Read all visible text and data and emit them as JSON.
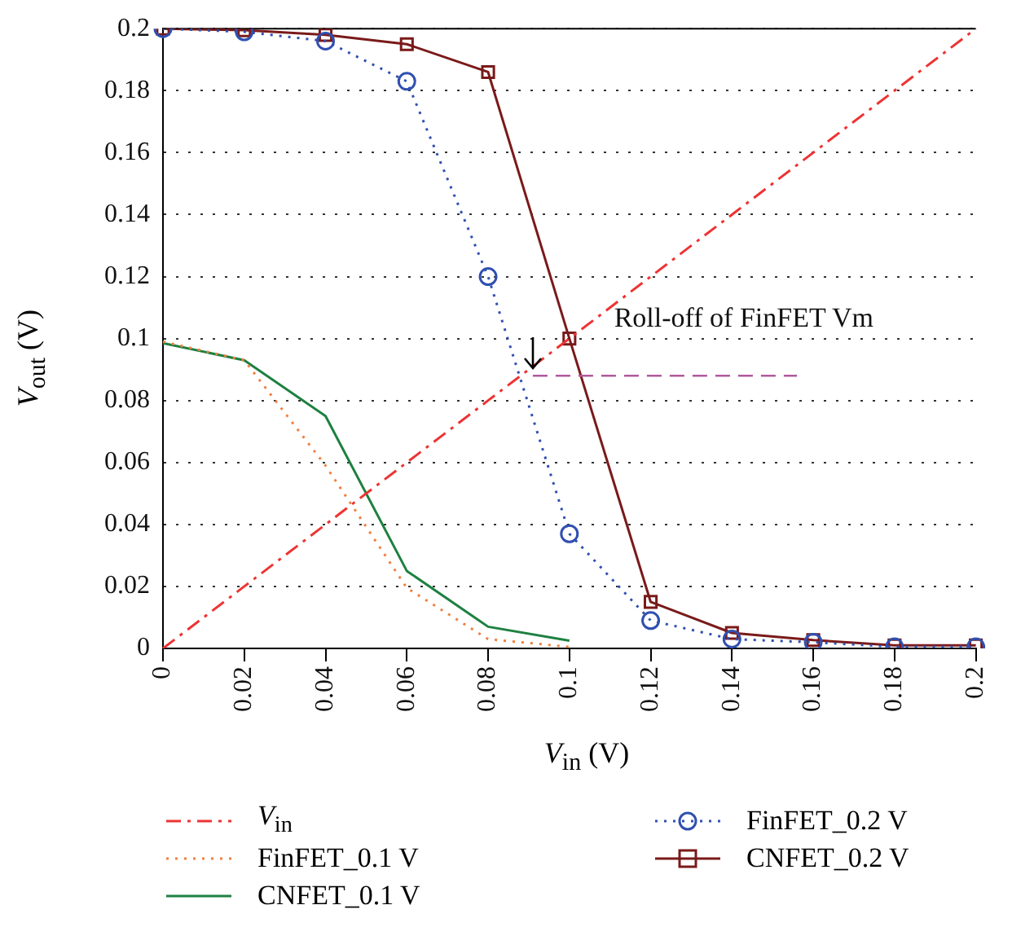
{
  "chart_data": {
    "type": "line",
    "xlabel": "V$_{in}$ (V)",
    "ylabel": "V$_{out}$ (V)",
    "categories": [
      "0",
      "0.02",
      "0.04",
      "0.06",
      "0.08",
      "0.1",
      "0.12",
      "0.14",
      "0.16",
      "0.18",
      "0.2"
    ],
    "series": [
      {
        "name": "V$_{in}$",
        "color": "#ee3333",
        "line_style": "dashed",
        "marker": "none",
        "values": [
          0,
          0.02,
          0.04,
          0.06,
          0.08,
          0.1,
          0.12,
          0.14,
          0.16,
          0.18,
          0.2
        ]
      },
      {
        "name": "FinFET_0.1 V",
        "color": "#f08040",
        "line_style": "dotted",
        "marker": "none",
        "values": [
          0.099,
          0.093,
          0.059,
          0.0195,
          0.003,
          0.0005,
          null,
          null,
          null,
          null,
          null
        ]
      },
      {
        "name": "CNFET_0.1 V",
        "color": "#1e8040",
        "line_style": "solid",
        "marker": "none",
        "values": [
          0.0985,
          0.093,
          0.075,
          0.025,
          0.007,
          0.0025,
          null,
          null,
          null,
          null,
          null
        ]
      },
      {
        "name": "FinFET_0.2 V",
        "color": "#3050b0",
        "line_style": "dotted",
        "marker": "circle",
        "values": [
          0.2,
          0.199,
          0.196,
          0.183,
          0.12,
          0.037,
          0.009,
          0.003,
          0.002,
          0.0005,
          0.0005
        ]
      },
      {
        "name": "CNFET_0.2 V",
        "color": "#7a1a1a",
        "line_style": "solid",
        "marker": "square",
        "values": [
          0.2,
          0.1995,
          0.198,
          0.195,
          0.186,
          0.1,
          0.015,
          0.005,
          0.0027,
          0.001,
          0.001
        ]
      }
    ],
    "ylim": [
      0,
      0.2
    ],
    "yticks": [
      0,
      0.02,
      0.04,
      0.06,
      0.08,
      0.1,
      0.12,
      0.14,
      0.16,
      0.18,
      0.2
    ],
    "grid": "y",
    "legend": "bottom",
    "ref_lines": [
      {
        "axis": "y",
        "value": 0.088,
        "label": "Roll-off of FinFET Vm",
        "color": "#b05a9a",
        "line_style": "dashed"
      }
    ]
  }
}
